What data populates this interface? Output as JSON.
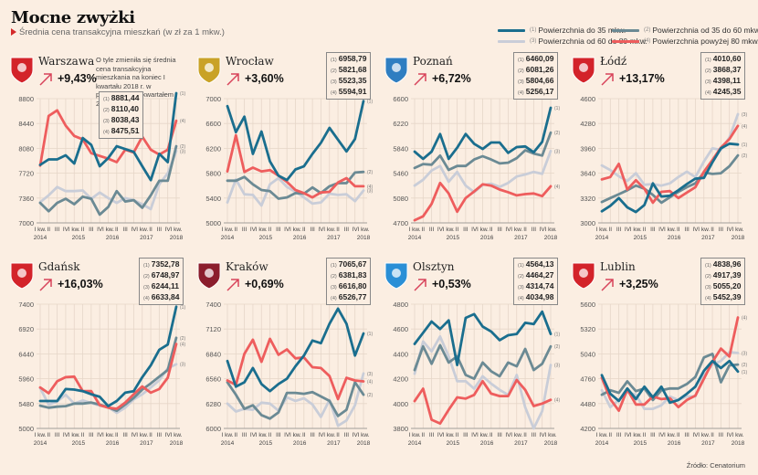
{
  "header": {
    "title": "Mocne zwyżki",
    "subtitle": "Średnia cena transakcyjna mieszkań (w zł za 1 mkw.)"
  },
  "legend": [
    {
      "num": "(1)",
      "label": "Powierzchnia do 35 mkw.",
      "color": "#1a6e8e"
    },
    {
      "num": "(2)",
      "label": "Powierzchnia od 35 do 60 mkw.",
      "color": "#6b8a94"
    },
    {
      "num": "(3)",
      "label": "Powierzchnia od 60 do 80 mkw.",
      "color": "#c9cdd8"
    },
    {
      "num": "(4)",
      "label": "Powierzchnia powyżej 80 mkw.",
      "color": "#ee5d5d"
    }
  ],
  "note": "O tyle zmieniła się średnia cena transakcyjna mieszkania na koniec I kwartału 2018 r. w porównaniu z I kwartałem 2017 r.",
  "source": "Źródło: Cenatorium",
  "series_num_labels": [
    "(1)",
    "(2)",
    "(3)",
    "(4)"
  ],
  "x_tick_labels": [
    "I kw.",
    "II",
    "III",
    "IV",
    "I kw.",
    "II",
    "III",
    "IV",
    "I kw.",
    "II",
    "III",
    "IV",
    "I kw.",
    "II",
    "III",
    "IV",
    "I kw."
  ],
  "x_year_labels": [
    "2014",
    "2015",
    "2016",
    "2017",
    "2018"
  ],
  "chart_data": [
    {
      "type": "line",
      "city": "Warszawa",
      "change": "+9,43%",
      "latest": [
        "8881,44",
        "8110,40",
        "8038,43",
        "8475,51"
      ],
      "ylim": [
        7000,
        8800
      ],
      "yticks": [
        7000,
        7360,
        7720,
        8080,
        8440,
        8800
      ],
      "series": [
        {
          "name": "(1)",
          "values": [
            7840,
            7920,
            7920,
            7980,
            7860,
            8230,
            8130,
            7820,
            7940,
            8110,
            8070,
            8030,
            7820,
            7620,
            8000,
            7880,
            8880
          ]
        },
        {
          "name": "(2)",
          "values": [
            7290,
            7170,
            7290,
            7350,
            7270,
            7380,
            7350,
            7120,
            7230,
            7460,
            7310,
            7330,
            7220,
            7400,
            7610,
            7610,
            8110
          ]
        },
        {
          "name": "(3)",
          "values": [
            7300,
            7400,
            7520,
            7460,
            7460,
            7470,
            7350,
            7440,
            7360,
            7290,
            7360,
            7330,
            7270,
            7200,
            7560,
            7720,
            8040
          ]
        },
        {
          "name": "(4)",
          "values": [
            7830,
            8550,
            8630,
            8410,
            8260,
            8210,
            8010,
            7970,
            7930,
            7880,
            8060,
            8020,
            8250,
            8060,
            7990,
            8060,
            8480
          ]
        }
      ]
    },
    {
      "type": "line",
      "city": "Wrocław",
      "change": "+3,60%",
      "latest": [
        "6958,79",
        "5821,68",
        "5523,35",
        "5594,91"
      ],
      "ylim": [
        5000,
        7000
      ],
      "yticks": [
        5000,
        5400,
        5800,
        6200,
        6600,
        7000
      ],
      "series": [
        {
          "name": "(1)",
          "values": [
            6880,
            6460,
            6710,
            6110,
            6470,
            5990,
            5760,
            5690,
            5860,
            5910,
            6110,
            6290,
            6530,
            6340,
            6150,
            6350,
            6960
          ]
        },
        {
          "name": "(2)",
          "values": [
            5680,
            5680,
            5740,
            5620,
            5530,
            5510,
            5390,
            5410,
            5480,
            5470,
            5570,
            5480,
            5590,
            5640,
            5640,
            5810,
            5820
          ]
        },
        {
          "name": "(3)",
          "values": [
            5330,
            5700,
            5460,
            5450,
            5280,
            5620,
            5720,
            5580,
            5500,
            5410,
            5310,
            5330,
            5470,
            5450,
            5460,
            5350,
            5520
          ]
        },
        {
          "name": "(4)",
          "values": [
            5830,
            6410,
            5820,
            5890,
            5830,
            5850,
            5760,
            5660,
            5530,
            5480,
            5410,
            5490,
            5500,
            5650,
            5720,
            5590,
            5590
          ]
        }
      ]
    },
    {
      "type": "line",
      "city": "Poznań",
      "change": "+6,72%",
      "latest": [
        "6460,09",
        "6081,26",
        "5804,66",
        "5256,17"
      ],
      "ylim": [
        4700,
        6600
      ],
      "yticks": [
        4700,
        5080,
        5460,
        5840,
        6220,
        6600
      ],
      "series": [
        {
          "name": "(1)",
          "values": [
            5790,
            5680,
            5790,
            6060,
            5680,
            5850,
            6060,
            5910,
            5830,
            5930,
            5930,
            5770,
            5860,
            5870,
            5780,
            5940,
            6460
          ]
        },
        {
          "name": "(2)",
          "values": [
            5540,
            5600,
            5590,
            5730,
            5510,
            5570,
            5570,
            5670,
            5720,
            5670,
            5610,
            5620,
            5690,
            5810,
            5760,
            5730,
            6080
          ]
        },
        {
          "name": "(3)",
          "values": [
            5270,
            5360,
            5500,
            5570,
            5330,
            5480,
            5270,
            5170,
            5280,
            5300,
            5250,
            5310,
            5410,
            5440,
            5480,
            5450,
            5800
          ]
        },
        {
          "name": "(4)",
          "values": [
            4740,
            4800,
            4990,
            5310,
            5150,
            4870,
            5080,
            5180,
            5290,
            5270,
            5210,
            5170,
            5120,
            5140,
            5150,
            5110,
            5260
          ]
        }
      ]
    },
    {
      "type": "line",
      "city": "Łódź",
      "change": "+13,17%",
      "latest": [
        "4010,60",
        "3868,37",
        "4398,11",
        "4245,35"
      ],
      "ylim": [
        3000,
        4600
      ],
      "yticks": [
        3000,
        3320,
        3640,
        3960,
        4280,
        4600
      ],
      "series": [
        {
          "name": "(1)",
          "values": [
            3150,
            3220,
            3320,
            3200,
            3140,
            3230,
            3510,
            3340,
            3350,
            3420,
            3500,
            3570,
            3580,
            3780,
            3960,
            4020,
            4010
          ]
        },
        {
          "name": "(2)",
          "values": [
            3270,
            3320,
            3370,
            3420,
            3480,
            3440,
            3360,
            3260,
            3330,
            3400,
            3460,
            3510,
            3650,
            3630,
            3640,
            3730,
            3870
          ]
        },
        {
          "name": "(3)",
          "values": [
            3740,
            3680,
            3600,
            3540,
            3640,
            3490,
            3500,
            3480,
            3510,
            3590,
            3660,
            3590,
            3790,
            3960,
            3940,
            4100,
            4400
          ]
        },
        {
          "name": "(4)",
          "values": [
            3560,
            3590,
            3760,
            3430,
            3550,
            3440,
            3260,
            3400,
            3410,
            3320,
            3390,
            3460,
            3660,
            3810,
            3970,
            4080,
            4250
          ]
        }
      ]
    },
    {
      "type": "line",
      "city": "Gdańsk",
      "change": "+16,03%",
      "latest": [
        "7352,78",
        "6748,97",
        "6244,11",
        "6633,84"
      ],
      "ylim": [
        5000,
        7400
      ],
      "yticks": [
        5000,
        5480,
        5960,
        6440,
        6920,
        7400
      ],
      "series": [
        {
          "name": "(1)",
          "values": [
            5530,
            5530,
            5530,
            5760,
            5750,
            5720,
            5660,
            5610,
            5430,
            5530,
            5690,
            5720,
            5990,
            6220,
            6520,
            6620,
            7350
          ]
        },
        {
          "name": "(2)",
          "values": [
            5440,
            5400,
            5420,
            5430,
            5480,
            5480,
            5500,
            5460,
            5410,
            5340,
            5460,
            5590,
            5750,
            5870,
            6000,
            6130,
            6750
          ]
        },
        {
          "name": "(3)",
          "values": [
            5780,
            5460,
            5520,
            5650,
            5480,
            5540,
            5490,
            5440,
            5410,
            5300,
            5400,
            5560,
            5660,
            5790,
            5930,
            6160,
            6240
          ]
        },
        {
          "name": "(4)",
          "values": [
            5790,
            5680,
            5910,
            5990,
            6000,
            5720,
            5720,
            5450,
            5400,
            5380,
            5500,
            5660,
            5810,
            5690,
            5760,
            5980,
            6630
          ]
        }
      ]
    },
    {
      "type": "line",
      "city": "Kraków",
      "change": "+0,69%",
      "latest": [
        "7065,67",
        "6381,83",
        "6616,80",
        "6526,77"
      ],
      "ylim": [
        6000,
        7400
      ],
      "yticks": [
        6000,
        6280,
        6560,
        6840,
        7120,
        7400
      ],
      "series": [
        {
          "name": "(1)",
          "values": [
            6760,
            6470,
            6520,
            6680,
            6500,
            6420,
            6500,
            6560,
            6700,
            6820,
            6990,
            6960,
            7180,
            7350,
            7180,
            6820,
            7070
          ]
        },
        {
          "name": "(2)",
          "values": [
            6520,
            6380,
            6220,
            6260,
            6150,
            6110,
            6180,
            6400,
            6400,
            6390,
            6410,
            6360,
            6310,
            6140,
            6210,
            6520,
            6380
          ]
        },
        {
          "name": "(3)",
          "values": [
            6280,
            6190,
            6220,
            6210,
            6290,
            6280,
            6200,
            6350,
            6310,
            6340,
            6270,
            6130,
            6320,
            6030,
            6090,
            6260,
            6620
          ]
        },
        {
          "name": "(4)",
          "values": [
            6540,
            6490,
            6840,
            7000,
            6750,
            7010,
            6830,
            6890,
            6790,
            6800,
            6690,
            6680,
            6590,
            6330,
            6570,
            6540,
            6530
          ]
        }
      ]
    },
    {
      "type": "line",
      "city": "Olsztyn",
      "change": "+0,53%",
      "latest": [
        "4564,13",
        "4464,27",
        "4314,74",
        "4034,98"
      ],
      "ylim": [
        3800,
        4800
      ],
      "yticks": [
        3800,
        4000,
        4200,
        4400,
        4600,
        4800
      ],
      "series": [
        {
          "name": "(1)",
          "values": [
            4480,
            4570,
            4660,
            4600,
            4670,
            4310,
            4690,
            4720,
            4620,
            4580,
            4510,
            4550,
            4560,
            4650,
            4640,
            4740,
            4560
          ]
        },
        {
          "name": "(2)",
          "values": [
            4270,
            4460,
            4320,
            4470,
            4330,
            4380,
            4230,
            4200,
            4330,
            4260,
            4220,
            4330,
            4300,
            4440,
            4270,
            4320,
            4460
          ]
        },
        {
          "name": "(3)",
          "values": [
            4240,
            4500,
            4420,
            4540,
            4380,
            4180,
            4180,
            4120,
            4220,
            4160,
            4110,
            4070,
            4230,
            3970,
            3800,
            3940,
            4310
          ]
        },
        {
          "name": "(4)",
          "values": [
            4020,
            4120,
            3870,
            3840,
            3950,
            4050,
            4040,
            4070,
            4180,
            4080,
            4060,
            4060,
            4190,
            4110,
            3980,
            4000,
            4030
          ]
        }
      ]
    },
    {
      "type": "line",
      "city": "Lublin",
      "change": "+3,25%",
      "latest": [
        "4838,96",
        "4917,39",
        "5055,20",
        "5452,39"
      ],
      "ylim": [
        4200,
        5600
      ],
      "yticks": [
        4200,
        4480,
        4760,
        5040,
        5320,
        5600
      ],
      "series": [
        {
          "name": "(1)",
          "values": [
            4800,
            4590,
            4510,
            4650,
            4530,
            4670,
            4550,
            4670,
            4490,
            4520,
            4590,
            4670,
            4850,
            4960,
            4880,
            4960,
            4840
          ]
        },
        {
          "name": "(2)",
          "values": [
            4580,
            4630,
            4600,
            4730,
            4620,
            4650,
            4520,
            4630,
            4650,
            4650,
            4700,
            4780,
            5000,
            5040,
            4720,
            4910,
            4920
          ]
        },
        {
          "name": "(3)",
          "values": [
            4630,
            4440,
            4520,
            4610,
            4580,
            4420,
            4420,
            4460,
            4560,
            4520,
            4560,
            4560,
            4790,
            4920,
            4960,
            5060,
            5050
          ]
        },
        {
          "name": "(4)",
          "values": [
            4770,
            4530,
            4400,
            4640,
            4470,
            4470,
            4560,
            4530,
            4540,
            4440,
            4520,
            4570,
            4760,
            4950,
            5100,
            5010,
            5450
          ]
        }
      ]
    }
  ]
}
